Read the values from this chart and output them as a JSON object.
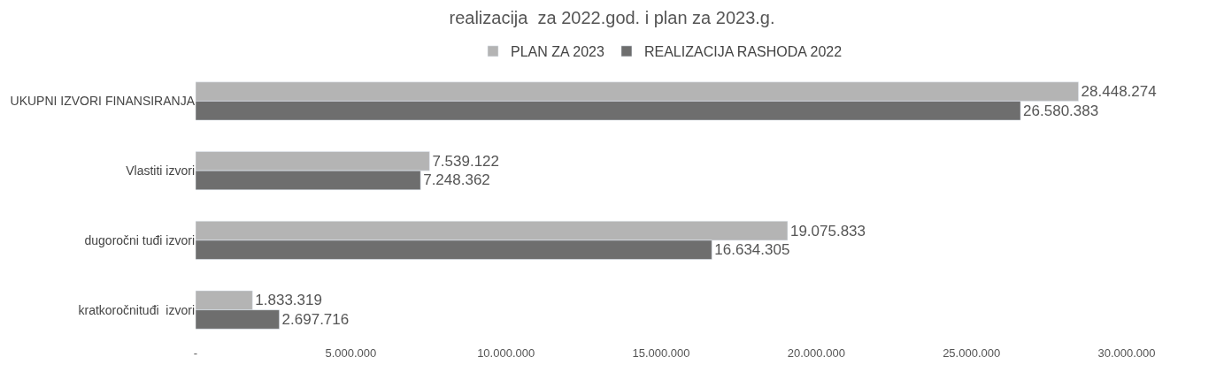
{
  "chart_data": {
    "type": "bar",
    "orientation": "horizontal",
    "title": "realizacija  za 2022.god. i plan za 2023.g.",
    "categories": [
      "UKUPNI IZVORI FINANSIRANJA",
      "Vlastiti izvori",
      "dugoročni tuđi izvori",
      "kratkoročnituđi  izvori"
    ],
    "series": [
      {
        "name": "PLAN ZA 2023",
        "color": "#b4b4b4",
        "values": [
          28448274,
          7539122,
          19075833,
          1833319
        ],
        "value_labels": [
          "28.448.274",
          "7.539.122",
          "19.075.833",
          "1.833.319"
        ]
      },
      {
        "name": "REALIZACIJA RASHODA 2022",
        "color": "#6e6e6e",
        "values": [
          26580383,
          7248362,
          16634305,
          2697716
        ],
        "value_labels": [
          "26.580.383",
          "7.248.362",
          "16.634.305",
          "2.697.716"
        ]
      }
    ],
    "xlim": [
      0,
      30000000
    ],
    "xticks": [
      {
        "value": 0,
        "label": "-"
      },
      {
        "value": 5000000,
        "label": "5.000.000"
      },
      {
        "value": 10000000,
        "label": "10.000.000"
      },
      {
        "value": 15000000,
        "label": "15.000.000"
      },
      {
        "value": 20000000,
        "label": "20.000.000"
      },
      {
        "value": 25000000,
        "label": "25.000.000"
      },
      {
        "value": 30000000,
        "label": "30.000.000"
      }
    ],
    "legend": "top"
  }
}
